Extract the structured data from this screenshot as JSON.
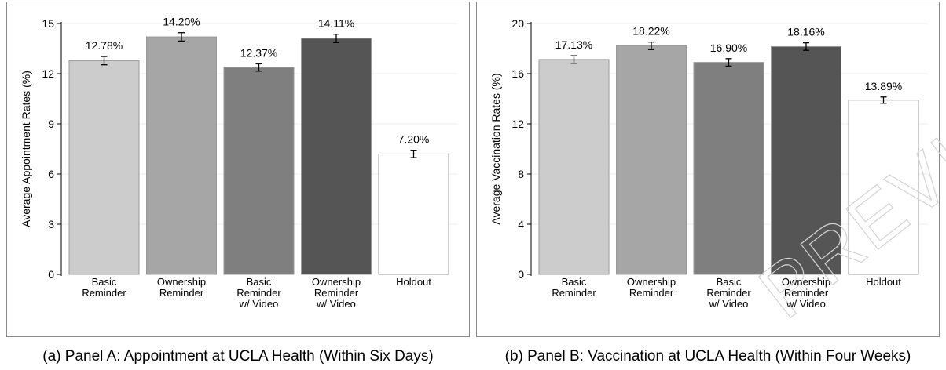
{
  "watermark": "PREVIEW",
  "chart_data": [
    {
      "type": "bar",
      "caption": "(a) Panel A: Appointment at UCLA Health (Within Six Days)",
      "ylabel": "Average Appointment Rates (%)",
      "ylim": [
        0,
        15
      ],
      "yticks": [
        0,
        3,
        6,
        9,
        12,
        15
      ],
      "grid": true,
      "categories": [
        [
          "Basic",
          "Reminder"
        ],
        [
          "Ownership",
          "Reminder"
        ],
        [
          "Basic",
          "Reminder",
          "w/ Video"
        ],
        [
          "Ownership",
          "Reminder",
          "w/ Video"
        ],
        [
          "Holdout"
        ]
      ],
      "values": [
        12.78,
        14.2,
        12.37,
        14.11,
        7.2
      ],
      "value_labels": [
        "12.78%",
        "14.20%",
        "12.37%",
        "14.11%",
        "7.20%"
      ],
      "errors": [
        0.25,
        0.25,
        0.22,
        0.25,
        0.22
      ],
      "colors": [
        "#cccccc",
        "#a6a6a6",
        "#7f7f7f",
        "#555555",
        "#ffffff"
      ]
    },
    {
      "type": "bar",
      "caption": "(b) Panel B: Vaccination at UCLA Health (Within Four Weeks)",
      "ylabel": "Average Vaccination Rates (%)",
      "ylim": [
        0,
        20
      ],
      "yticks": [
        0,
        4,
        8,
        12,
        16,
        20
      ],
      "grid": true,
      "categories": [
        [
          "Basic",
          "Reminder"
        ],
        [
          "Ownership",
          "Reminder"
        ],
        [
          "Basic",
          "Reminder",
          "w/ Video"
        ],
        [
          "Ownership",
          "Reminder",
          "w/ Video"
        ],
        [
          "Holdout"
        ]
      ],
      "values": [
        17.13,
        18.22,
        16.9,
        18.16,
        13.89
      ],
      "value_labels": [
        "17.13%",
        "18.22%",
        "16.90%",
        "18.16%",
        "13.89%"
      ],
      "errors": [
        0.3,
        0.3,
        0.3,
        0.3,
        0.25
      ],
      "colors": [
        "#cccccc",
        "#a6a6a6",
        "#7f7f7f",
        "#555555",
        "#ffffff"
      ]
    }
  ]
}
